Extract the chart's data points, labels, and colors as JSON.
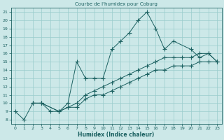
{
  "title": "Courbe de l'humidex pour Coburg",
  "xlabel": "Humidex (Indice chaleur)",
  "bg_color": "#cce8e8",
  "grid_color": "#99cccc",
  "line_color": "#1a6060",
  "xlim": [
    -0.5,
    23.5
  ],
  "ylim": [
    7.5,
    21.5
  ],
  "xticks": [
    0,
    1,
    2,
    3,
    4,
    5,
    6,
    7,
    8,
    9,
    10,
    11,
    12,
    13,
    14,
    15,
    16,
    17,
    18,
    19,
    20,
    21,
    22,
    23
  ],
  "yticks": [
    8,
    9,
    10,
    11,
    12,
    13,
    14,
    15,
    16,
    17,
    18,
    19,
    20,
    21
  ],
  "line1_x": [
    0,
    1,
    2,
    3,
    4,
    5,
    6,
    7,
    8,
    9,
    10,
    11,
    12,
    13,
    14,
    15,
    16,
    17,
    18,
    20,
    21,
    22,
    23
  ],
  "line1_y": [
    9,
    8,
    10,
    10,
    9,
    9,
    10,
    15,
    13,
    13,
    13,
    16.5,
    17.5,
    18.5,
    20,
    21,
    19,
    16.5,
    17.5,
    16.5,
    15.5,
    16,
    15
  ],
  "line2_x": [
    2,
    3,
    5,
    6,
    7,
    8,
    9,
    10,
    11,
    12,
    13,
    14,
    15,
    16,
    17,
    18,
    19,
    20,
    21,
    22,
    23
  ],
  "line2_y": [
    10,
    10,
    9,
    9.5,
    10,
    11,
    11.5,
    12,
    12.5,
    13,
    13.5,
    14,
    14.5,
    15,
    15.5,
    15.5,
    15.5,
    15.5,
    16,
    16,
    15
  ],
  "line3_x": [
    2,
    3,
    5,
    6,
    7,
    8,
    9,
    10,
    11,
    12,
    13,
    14,
    15,
    16,
    17,
    18,
    19,
    20,
    21,
    22,
    23
  ],
  "line3_y": [
    10,
    10,
    9,
    9.5,
    9.5,
    10.5,
    11,
    11,
    11.5,
    12,
    12.5,
    13,
    13.5,
    14,
    14,
    14.5,
    14.5,
    14.5,
    15,
    15,
    15
  ]
}
